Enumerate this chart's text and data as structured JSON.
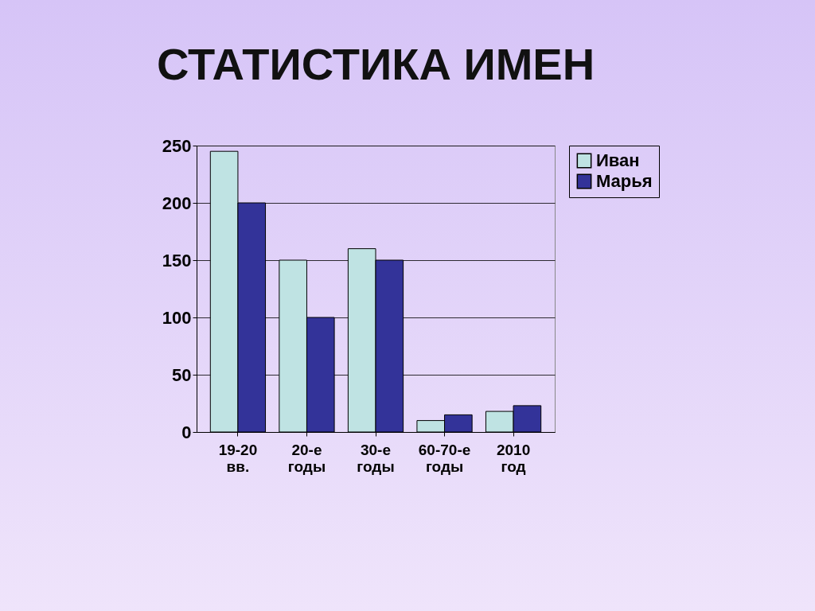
{
  "chart_data": {
    "type": "bar",
    "title": "СТАТИСТИКА ИМЕН",
    "categories": [
      "19-20 вв.",
      "20-е годы",
      "30-е годы",
      "60-70-е годы",
      "2010 год"
    ],
    "series": [
      {
        "name": "Иван",
        "color": "#bfe3e3",
        "values": [
          245,
          150,
          160,
          10,
          18
        ]
      },
      {
        "name": "Марья",
        "color": "#333399",
        "values": [
          200,
          100,
          150,
          15,
          23
        ]
      }
    ],
    "ylim": [
      0,
      250
    ],
    "yticks": [
      0,
      50,
      100,
      150,
      200,
      250
    ],
    "grid": "y",
    "legend": "right"
  }
}
